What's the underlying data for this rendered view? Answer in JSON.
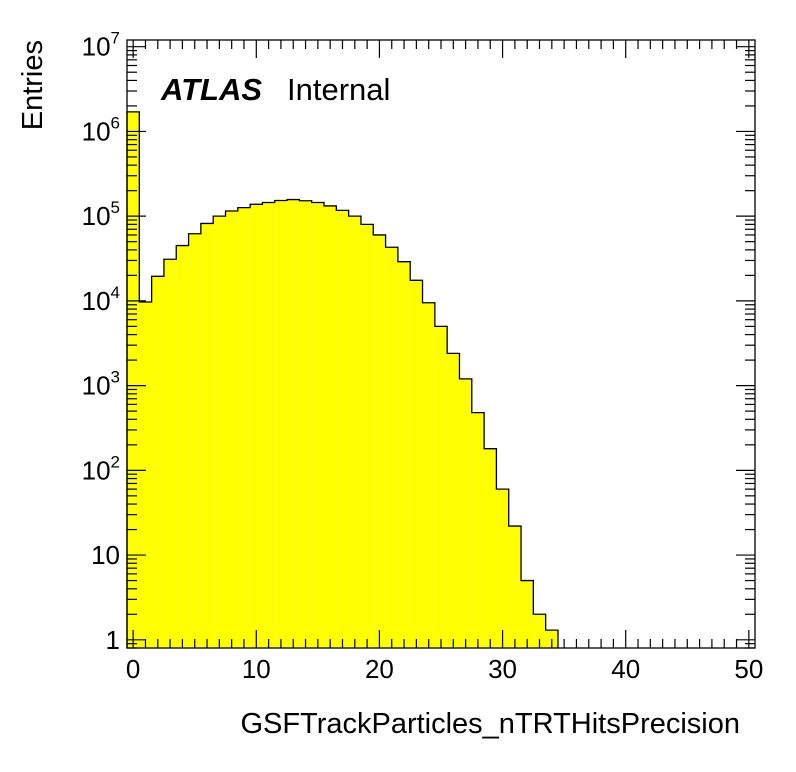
{
  "chart_data": {
    "type": "histogram",
    "title": "",
    "xlabel": "GSFTrackParticles_nTRTHitsPrecision",
    "ylabel": "Entries",
    "xlim": [
      -0.5,
      50.5
    ],
    "ylim": [
      0.8,
      12000000
    ],
    "yscale": "log",
    "grid": false,
    "legend": "none",
    "annotation": {
      "bold": "ATLAS",
      "normal": "Internal"
    },
    "fill_color": "#ffff00",
    "line_color": "#000000",
    "bin_width": 1,
    "x_ticks": [
      0,
      10,
      20,
      30,
      40,
      50
    ],
    "x_tick_labels": [
      "0",
      "10",
      "20",
      "30",
      "40",
      "50"
    ],
    "y_ticks": [
      1,
      10,
      100,
      1000,
      10000,
      100000,
      1000000,
      10000000
    ],
    "y_tick_labels": [
      {
        "base": "1",
        "exp": ""
      },
      {
        "base": "10",
        "exp": ""
      },
      {
        "base": "10",
        "exp": "2"
      },
      {
        "base": "10",
        "exp": "3"
      },
      {
        "base": "10",
        "exp": "4"
      },
      {
        "base": "10",
        "exp": "5"
      },
      {
        "base": "10",
        "exp": "6"
      },
      {
        "base": "10",
        "exp": "7"
      }
    ],
    "x": [
      0,
      1,
      2,
      3,
      4,
      5,
      6,
      7,
      8,
      9,
      10,
      11,
      12,
      13,
      14,
      15,
      16,
      17,
      18,
      19,
      20,
      21,
      22,
      23,
      24,
      25,
      26,
      27,
      28,
      29,
      30,
      31,
      32,
      33,
      34
    ],
    "values": [
      1700000,
      9700,
      19500,
      31000,
      45000,
      62000,
      82000,
      100000,
      115000,
      126000,
      138000,
      145000,
      153000,
      157000,
      152000,
      145000,
      132000,
      117000,
      100000,
      80000,
      60000,
      43000,
      29000,
      17500,
      9500,
      5000,
      2400,
      1200,
      480,
      180,
      60,
      22,
      5,
      2,
      1.3
    ]
  }
}
